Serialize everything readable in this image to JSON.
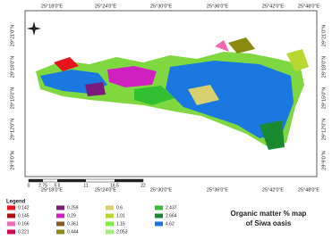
{
  "map": {
    "top_labels": [
      "25°18'0\"E",
      "25°24'0\"E",
      "25°30'0\"E",
      "25°36'0\"E",
      "25°42'0\"E",
      "25°48'0\"E"
    ],
    "bottom_labels": [
      "25°18'0\"E",
      "25°24'0\"E",
      "25°30'0\"E",
      "25°36'0\"E",
      "25°42'0\"E",
      "25°48'0\"E"
    ],
    "left_labels": [
      "29°21'0\"N",
      "29°18'0\"N",
      "29°15'0\"N",
      "29°12'0\"N",
      "29°9'0\"N"
    ],
    "right_labels": [
      "29°21'0\"N",
      "29°18'0\"N",
      "29°15'0\"N",
      "29°12'0\"N",
      "29°9'0\"N"
    ],
    "scale_ticks": [
      0,
      2.75,
      5.5,
      11,
      16.5,
      22
    ]
  },
  "legend": {
    "title": "Legend",
    "items": [
      {
        "label": 0.142,
        "color": "#e8141c"
      },
      {
        "label": 0.145,
        "color": "#b01010"
      },
      {
        "label": 0.166,
        "color": "#f06ab0"
      },
      {
        "label": 0.221,
        "color": "#c8104a"
      },
      {
        "label": 0.259,
        "color": "#7a1a7a"
      },
      {
        "label": 0.29,
        "color": "#d020c0"
      },
      {
        "label": 0.361,
        "color": "#8a5a2a"
      },
      {
        "label": 0.444,
        "color": "#8a8a10"
      },
      {
        "label": 0.6,
        "color": "#d8d070"
      },
      {
        "label": 1.01,
        "color": "#b8d830"
      },
      {
        "label": 1.15,
        "color": "#80f040"
      },
      {
        "label": 2.053,
        "color": "#a0f080"
      },
      {
        "label": 2.437,
        "color": "#30c030"
      },
      {
        "label": 2.664,
        "color": "#1a8a30"
      },
      {
        "label": 4.62,
        "color": "#1a78e0"
      }
    ]
  },
  "title": [
    "Organic matter % map",
    "of Siwa oasis"
  ]
}
